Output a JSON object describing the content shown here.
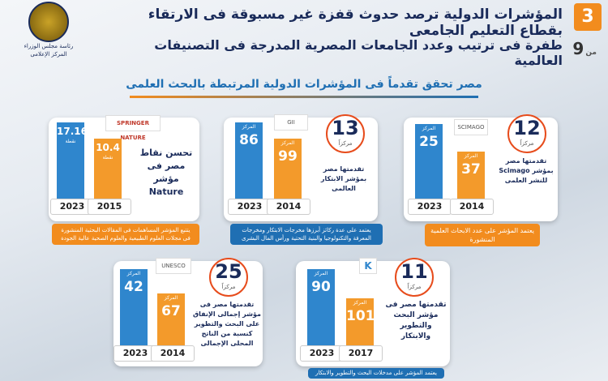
{
  "header": {
    "title_line1": "المؤشرات الدولية ترصد حدوث قفزة غير مسبوقة فى الارتقاء بقطاع التعليم الجامعى",
    "title_line2": "طفرة فى ترتيب وعدد الجامعات المصرية المدرجة فى التصنيفات العالمية",
    "page_number": "3",
    "page_of_label": "من",
    "page_total": "9",
    "logo_text": "رئاسة مجلس الوزراء المركز الإعلامى"
  },
  "subtitle": "مصر تحقق تقدماً فى المؤشرات الدولية المرتبطة بالبحث العلمى",
  "common": {
    "rank_word": "المركز",
    "places_word": "مركزاً",
    "points_word": "نقطة"
  },
  "cards": [
    {
      "id": "scimago",
      "source_logo": "SCIMAGO",
      "rank_change": "12",
      "bars": [
        {
          "year": "2014",
          "value": "37",
          "color": "orange"
        },
        {
          "year": "2023",
          "value": "25",
          "color": "blue"
        }
      ],
      "description": "تقدمتها مصر بمؤشر Scimago للنشر العلمى",
      "note": "يعتمد المؤشر على عدد الابحاث العلمية المنشورة"
    },
    {
      "id": "innovation",
      "source_logo": "GII",
      "rank_change": "13",
      "bars": [
        {
          "year": "2014",
          "value": "99",
          "color": "orange"
        },
        {
          "year": "2023",
          "value": "86",
          "color": "blue"
        }
      ],
      "description": "تقدمتها مصر بمؤشر الابتكار العالمى",
      "note": "يعتمد على عدة ركائز أبرزها مخرجات الابتكار ومخرجات المعرفة والتكنولوجيا والبنية التحتية ورأس المال البشرى"
    },
    {
      "id": "nature",
      "source_logo": "SPRINGER NATURE",
      "bars": [
        {
          "year": "2015",
          "value": "10.4",
          "color": "orange"
        },
        {
          "year": "2023",
          "value": "17.16",
          "color": "blue"
        }
      ],
      "description": "تحسن نقاط مصر فى مؤشر Nature",
      "note": "يتتبع المؤشر المساهمات فى المقالات البحثية المنشورة فى مجلات العلوم الطبيعية والعلوم الصحية عالية الجودة"
    },
    {
      "id": "rd",
      "source_logo": "K",
      "rank_change": "11",
      "bars": [
        {
          "year": "2017",
          "value": "101",
          "color": "orange"
        },
        {
          "year": "2023",
          "value": "90",
          "color": "blue"
        }
      ],
      "description": "تقدمتها مصر فى مؤشر البحث والتطوير والابتكار",
      "note": "يعتمد المؤشر على مدخلات البحث والتطوير والابتكار"
    },
    {
      "id": "spending",
      "source_logo": "UNESCO",
      "rank_change": "25",
      "bars": [
        {
          "year": "2014",
          "value": "67",
          "color": "orange"
        },
        {
          "year": "2023",
          "value": "42",
          "color": "blue"
        }
      ],
      "description": "تقدمتها مصر فى مؤشر إجمالى الإنفاق على البحث والتطوير كنسبة من الناتج المحلى الإجمالى"
    }
  ],
  "colors": {
    "orange": "#f39a2b",
    "blue": "#2f86cd",
    "navy": "#1a2b5a",
    "accent_red": "#e74c1c"
  }
}
